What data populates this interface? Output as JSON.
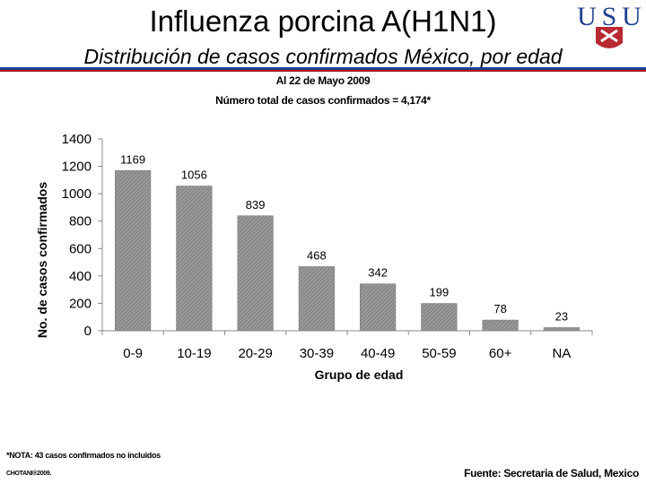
{
  "slide": {
    "title": "Influenza porcina A(H1N1)",
    "subtitle": "Distribución de casos confirmados México, por edad",
    "date_line": "Al 22 de Mayo 2009",
    "total_line": "Número total de casos confirmados = 4,174*",
    "note": "*NOTA: 43 casos confirmados no incluidos",
    "copyright": "CHOTANI®2009.",
    "source": "Fuente: Secretaria de Salud, Mexico"
  },
  "logo": {
    "letters": [
      "U",
      "S",
      "U"
    ],
    "colors": {
      "navy": "#1f3f8f",
      "red": "#b0121b"
    }
  },
  "chart_data": {
    "type": "bar",
    "categories": [
      "0-9",
      "10-19",
      "20-29",
      "30-39",
      "40-49",
      "50-59",
      "60+",
      "NA"
    ],
    "values": [
      1169,
      1056,
      839,
      468,
      342,
      199,
      78,
      23
    ],
    "xlabel": "Grupo de edad",
    "ylabel": "No. de casos confirmados",
    "ylim": [
      0,
      1400
    ],
    "yticks": [
      0,
      200,
      400,
      600,
      800,
      1000,
      1200,
      1400
    ],
    "grid": false,
    "legend": "none",
    "bar_fill": "hatched gray",
    "colors": {
      "bar": "#8a8a8a",
      "axis": "#888888"
    }
  }
}
